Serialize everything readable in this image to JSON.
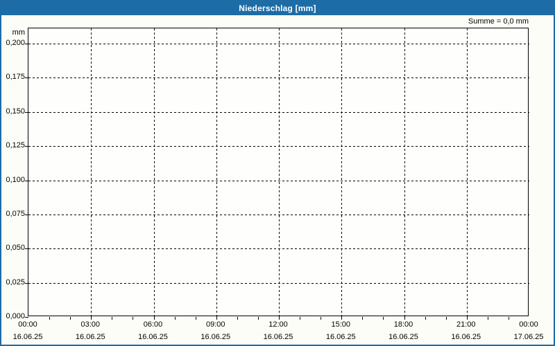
{
  "window": {
    "title": "Niederschlag [mm]"
  },
  "colors": {
    "accent_blue": "#1d6ca6",
    "frame_blue": "#1d6ca6",
    "grid": "#000000",
    "text": "#000000",
    "background": "#fdfdf8",
    "plot_background": "#fefefc"
  },
  "chart_data": {
    "type": "line",
    "title": "Niederschlag [mm]",
    "xlabel": "",
    "ylabel": "mm",
    "ylim": [
      0,
      0.2
    ],
    "ytick_step": 0.025,
    "yticks": [
      0,
      0.025,
      0.05,
      0.075,
      0.1,
      0.125,
      0.15,
      0.175,
      0.2
    ],
    "ytick_labels": [
      "0,000",
      "0,025",
      "0,050",
      "0,075",
      "0,100",
      "0,125",
      "0,150",
      "0,175",
      "0,200"
    ],
    "x_range_hours": 24,
    "minor_xtick_hours": 1,
    "major_xtick_hours": 3,
    "xticks": [
      {
        "time": "00:00",
        "date": "16.06.25"
      },
      {
        "time": "03:00",
        "date": "16.06.25"
      },
      {
        "time": "06:00",
        "date": "16.06.25"
      },
      {
        "time": "09:00",
        "date": "16.06.25"
      },
      {
        "time": "12:00",
        "date": "16.06.25"
      },
      {
        "time": "15:00",
        "date": "16.06.25"
      },
      {
        "time": "18:00",
        "date": "16.06.25"
      },
      {
        "time": "21:00",
        "date": "16.06.25"
      },
      {
        "time": "00:00",
        "date": "17.06.25"
      }
    ],
    "grid": "dashed",
    "legend_position": "none",
    "annotation": "Summe = 0,0 mm",
    "series": [
      {
        "name": "Niederschlag",
        "values": []
      }
    ]
  }
}
